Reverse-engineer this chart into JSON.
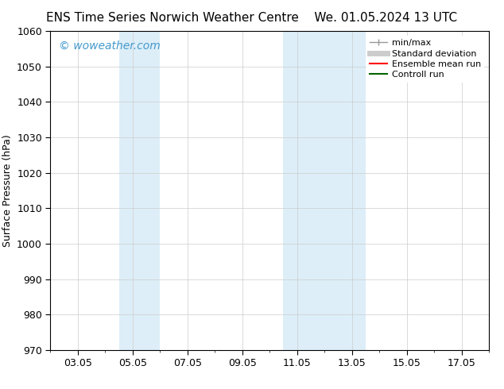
{
  "title_left": "ENS Time Series Norwich Weather Centre",
  "title_right": "We. 01.05.2024 13 UTC",
  "ylabel": "Surface Pressure (hPa)",
  "ylim": [
    970,
    1060
  ],
  "yticks": [
    970,
    980,
    990,
    1000,
    1010,
    1020,
    1030,
    1040,
    1050,
    1060
  ],
  "xtick_labels": [
    "03.05",
    "05.05",
    "07.05",
    "09.05",
    "11.05",
    "13.05",
    "15.05",
    "17.05"
  ],
  "xtick_positions": [
    3,
    5,
    7,
    9,
    11,
    13,
    15,
    17
  ],
  "xlim": [
    2,
    18
  ],
  "shaded_bands": [
    {
      "x_start": 4.5,
      "x_end": 6.0
    },
    {
      "x_start": 10.5,
      "x_end": 13.5
    }
  ],
  "shaded_color": "#ddeef8",
  "watermark_text": "© woweather.com",
  "watermark_color": "#4499cc",
  "legend_items": [
    {
      "label": "min/max",
      "color": "#999999",
      "lw": 1.0
    },
    {
      "label": "Standard deviation",
      "color": "#cccccc",
      "lw": 5
    },
    {
      "label": "Ensemble mean run",
      "color": "#ff0000",
      "lw": 1.5
    },
    {
      "label": "Controll run",
      "color": "#006600",
      "lw": 1.5
    }
  ],
  "bg_color": "#ffffff",
  "grid_color": "#cccccc",
  "title_fontsize": 11,
  "axis_fontsize": 9,
  "tick_fontsize": 9,
  "legend_fontsize": 8,
  "watermark_fontsize": 10
}
